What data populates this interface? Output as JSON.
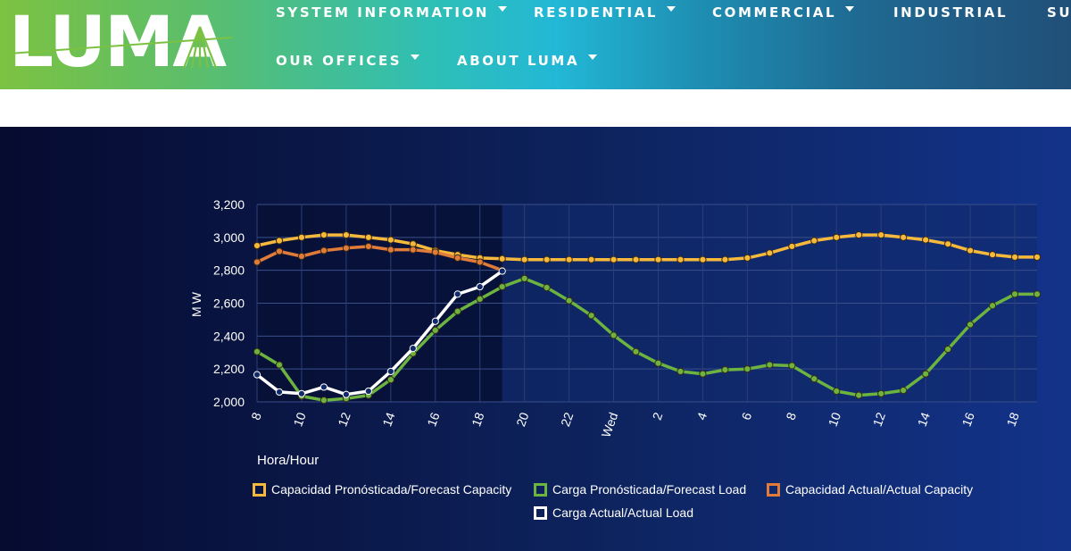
{
  "header": {
    "logo_text": "LUMA",
    "nav": [
      {
        "label": "SYSTEM INFORMATION",
        "dropdown": true
      },
      {
        "label": "RESIDENTIAL",
        "dropdown": true
      },
      {
        "label": "COMMERCIAL",
        "dropdown": true
      },
      {
        "label": "INDUSTRIAL",
        "dropdown": false
      },
      {
        "label": "SU",
        "dropdown": false
      },
      {
        "label": "OUR OFFICES",
        "dropdown": true
      },
      {
        "label": "ABOUT LUMA",
        "dropdown": true
      }
    ]
  },
  "chart_data": {
    "type": "line",
    "title": "",
    "xlabel": "Hora/Hour",
    "ylabel": "MW",
    "ylim": [
      2000,
      3200
    ],
    "y_ticks": [
      "2,000",
      "2,200",
      "2,400",
      "2,600",
      "2,800",
      "3,000",
      "3,200"
    ],
    "x_ticks": [
      "8",
      "10",
      "12",
      "14",
      "16",
      "18",
      "20",
      "22",
      "Wed",
      "2",
      "4",
      "6",
      "8",
      "10",
      "12",
      "14",
      "16",
      "18"
    ],
    "x_hours_since_start": [
      0,
      1,
      2,
      3,
      4,
      5,
      6,
      7,
      8,
      9,
      10,
      11,
      12,
      13,
      14,
      15,
      16,
      17,
      18,
      19,
      20,
      21,
      22,
      23,
      24,
      25,
      26,
      27,
      28,
      29,
      30,
      31,
      32,
      33,
      34,
      35
    ],
    "grid": true,
    "legend_position": "bottom",
    "series": [
      {
        "name": "Capacidad Pronósticada/Forecast Capacity",
        "color": "#f6b93b",
        "values": [
          2950,
          2980,
          3000,
          3015,
          3015,
          3000,
          2985,
          2960,
          2920,
          2895,
          2875,
          2870,
          2865,
          2865,
          2865,
          2865,
          2865,
          2865,
          2865,
          2865,
          2865,
          2865,
          2875,
          2905,
          2945,
          2980,
          3000,
          3015,
          3015,
          3000,
          2985,
          2960,
          2920,
          2895,
          2880,
          2880
        ]
      },
      {
        "name": "Carga Pronósticada/Forecast Load",
        "color": "#6cb33f",
        "values": [
          2305,
          2225,
          2035,
          2010,
          2020,
          2040,
          2135,
          2295,
          2435,
          2550,
          2625,
          2700,
          2750,
          2695,
          2615,
          2525,
          2405,
          2305,
          2235,
          2185,
          2170,
          2195,
          2200,
          2225,
          2220,
          2140,
          2065,
          2040,
          2050,
          2070,
          2170,
          2320,
          2470,
          2585,
          2655,
          2655
        ]
      },
      {
        "name": "Capacidad Actual/Actual Capacity",
        "color": "#e07b39",
        "values": [
          2850,
          2915,
          2885,
          2920,
          2935,
          2945,
          2925,
          2925,
          2910,
          2875,
          2850,
          2800
        ]
      },
      {
        "name": "Carga Actual/Actual Load",
        "color": "#ffffff",
        "values": [
          2165,
          2060,
          2050,
          2090,
          2045,
          2065,
          2185,
          2325,
          2490,
          2655,
          2700,
          2795
        ]
      }
    ]
  }
}
